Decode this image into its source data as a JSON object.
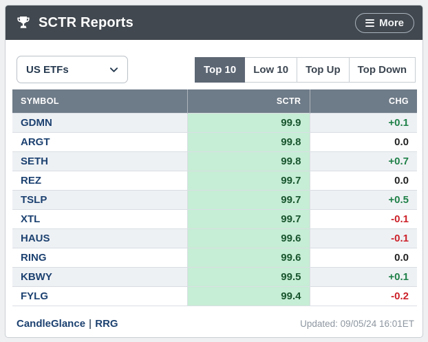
{
  "header": {
    "title": "SCTR Reports",
    "more_label": "More"
  },
  "controls": {
    "dropdown_value": "US ETFs",
    "tabs": [
      {
        "label": "Top 10",
        "active": true
      },
      {
        "label": "Low 10",
        "active": false
      },
      {
        "label": "Top Up",
        "active": false
      },
      {
        "label": "Top Down",
        "active": false
      }
    ]
  },
  "table": {
    "columns": [
      "SYMBOL",
      "SCTR",
      "CHG"
    ],
    "rows": [
      {
        "symbol": "GDMN",
        "sctr": "99.9",
        "chg": "+0.1"
      },
      {
        "symbol": "ARGT",
        "sctr": "99.8",
        "chg": "0.0"
      },
      {
        "symbol": "SETH",
        "sctr": "99.8",
        "chg": "+0.7"
      },
      {
        "symbol": "REZ",
        "sctr": "99.7",
        "chg": "0.0"
      },
      {
        "symbol": "TSLP",
        "sctr": "99.7",
        "chg": "+0.5"
      },
      {
        "symbol": "XTL",
        "sctr": "99.7",
        "chg": "-0.1"
      },
      {
        "symbol": "HAUS",
        "sctr": "99.6",
        "chg": "-0.1"
      },
      {
        "symbol": "RING",
        "sctr": "99.6",
        "chg": "0.0"
      },
      {
        "symbol": "KBWY",
        "sctr": "99.5",
        "chg": "+0.1"
      },
      {
        "symbol": "FYLG",
        "sctr": "99.4",
        "chg": "-0.2"
      }
    ]
  },
  "footer": {
    "link1": "CandleGlance",
    "separator": "|",
    "link2": "RRG",
    "updated": "Updated: 09/05/24 16:01ET"
  },
  "colors": {
    "header_bg": "#42484f",
    "table_header_bg": "#6e7b88",
    "active_tab_bg": "#5d6774",
    "sctr_column_bg": "#c6edd5",
    "sctr_value": "#18552e",
    "symbol_link": "#1c4170",
    "positive": "#1f8048",
    "negative": "#cc2129",
    "neutral": "#222222"
  }
}
